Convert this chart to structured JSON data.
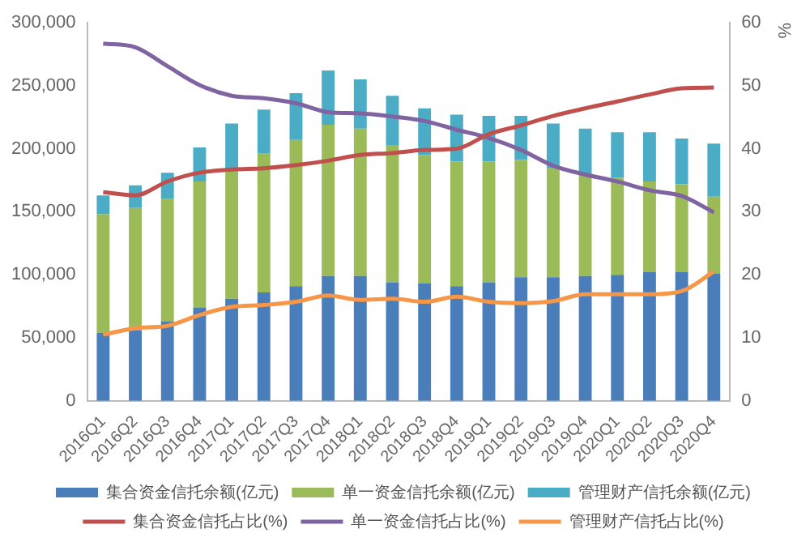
{
  "chart_data": {
    "type": "bar",
    "stacked": true,
    "y2label": "%",
    "legend": "bottom",
    "grid": false,
    "marker": "none",
    "line_style": "solid",
    "categories": [
      "2016Q1",
      "2016Q2",
      "2016Q3",
      "2016Q4",
      "2017Q1",
      "2017Q2",
      "2017Q3",
      "2017Q4",
      "2018Q1",
      "2018Q2",
      "2018Q3",
      "2018Q4",
      "2019Q1",
      "2019Q2",
      "2019Q3",
      "2019Q4",
      "2020Q1",
      "2020Q2",
      "2020Q3",
      "2020Q4"
    ],
    "ylim": [
      0,
      300000
    ],
    "yticks": [
      0,
      {
        "value": 50000,
        "label": "50,000"
      },
      {
        "value": 100000,
        "label": "100,000"
      },
      {
        "value": 150000,
        "label": "150,000"
      },
      {
        "value": 200000,
        "label": "200,000"
      },
      {
        "value": 250000,
        "label": "250,000"
      },
      {
        "value": 300000,
        "label": "300,000"
      }
    ],
    "y2lim": [
      0,
      60
    ],
    "y2ticks": [
      0,
      10,
      20,
      30,
      40,
      50,
      60
    ],
    "series": [
      {
        "name": "集合资金信托余额(亿元)",
        "color": "#4a7ebb",
        "values": [
          54000,
          56000,
          63000,
          74000,
          81000,
          86000,
          91000,
          99000,
          99000,
          94000,
          93000,
          91000,
          94000,
          98000,
          98000,
          99000,
          100000,
          102000,
          102000,
          101000
        ]
      },
      {
        "name": "单一资金信托余额(亿元)",
        "color": "#9bbb59",
        "values": [
          94000,
          97000,
          97000,
          100000,
          102000,
          110000,
          116000,
          120000,
          117000,
          109000,
          102000,
          99000,
          96000,
          93000,
          87000,
          81000,
          77000,
          72000,
          70000,
          61000
        ]
      },
      {
        "name": "管理财产信托余额(亿元)",
        "color": "#4bacc6",
        "values": [
          15000,
          18000,
          21000,
          27000,
          37000,
          35000,
          37000,
          43000,
          39000,
          39000,
          37000,
          37000,
          36000,
          35000,
          35000,
          36000,
          36000,
          39000,
          36000,
          42000
        ]
      },
      {
        "name": "集合资金信托占比(%)",
        "type": "line",
        "axis": "y2",
        "color": "#c0504d",
        "values": [
          33.1,
          32.6,
          34.8,
          36.2,
          36.7,
          36.9,
          37.4,
          38.1,
          39,
          39.3,
          39.8,
          40,
          42.3,
          43.7,
          45.2,
          46.4,
          47.5,
          48.6,
          49.6,
          49.7
        ]
      },
      {
        "name": "单一资金信托占比(%)",
        "type": "line",
        "axis": "y2",
        "color": "#8064a2",
        "values": [
          56.7,
          56.1,
          53.1,
          50.1,
          48.4,
          48,
          47.2,
          45.8,
          45.6,
          45.1,
          44.4,
          43,
          41.7,
          39.8,
          37.3,
          35.9,
          34.8,
          33.4,
          32.5,
          29.9
        ]
      },
      {
        "name": "管理财产信托占比(%)",
        "type": "line",
        "axis": "y2",
        "color": "#f79646",
        "values": [
          10.5,
          11.5,
          11.9,
          13.6,
          14.9,
          15.2,
          15.7,
          16.7,
          16,
          16.2,
          15.7,
          16.5,
          15.7,
          15.5,
          15.8,
          16.9,
          16.9,
          16.9,
          17.4,
          20.5
        ]
      }
    ]
  }
}
